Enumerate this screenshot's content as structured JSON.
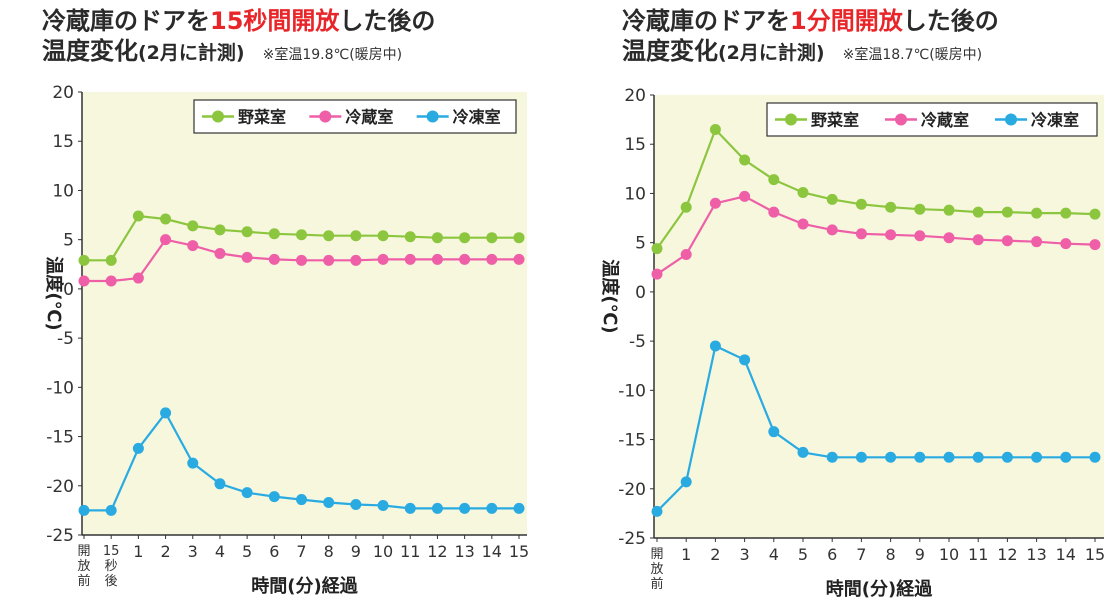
{
  "chart_data": [
    {
      "type": "line",
      "title": {
        "line1_pre": "冷蔵庫のドアを",
        "line1_highlight": "15秒間開放",
        "line1_post": "した後の",
        "line2_main": "温度変化",
        "line2_paren": "(2月に計測)",
        "room_note": "※室温19.8℃(暖房中)"
      },
      "xlabel": "時間(分)経過",
      "ylabel": "温度(℃)",
      "ylim": [
        -25,
        20
      ],
      "yticks": [
        "20",
        "15",
        "10",
        "5",
        "0",
        "-5",
        "-10",
        "-15",
        "-20",
        "-25"
      ],
      "categories": [
        "開放前",
        "15秒後",
        "1",
        "2",
        "3",
        "4",
        "5",
        "6",
        "7",
        "8",
        "9",
        "10",
        "11",
        "12",
        "13",
        "14",
        "15"
      ],
      "legend_position": "top-right",
      "grid": false,
      "series": [
        {
          "name": "野菜室",
          "color": "#8cc63f",
          "values": [
            2.9,
            2.9,
            7.4,
            7.1,
            6.4,
            6.0,
            5.8,
            5.6,
            5.5,
            5.4,
            5.4,
            5.4,
            5.3,
            5.2,
            5.2,
            5.2,
            5.2
          ]
        },
        {
          "name": "冷蔵室",
          "color": "#ee5fa7",
          "values": [
            0.8,
            0.8,
            1.1,
            5.0,
            4.4,
            3.6,
            3.2,
            3.0,
            2.9,
            2.9,
            2.9,
            3.0,
            3.0,
            3.0,
            3.0,
            3.0,
            3.0
          ]
        },
        {
          "name": "冷凍室",
          "color": "#29abe2",
          "values": [
            -22.5,
            -22.5,
            -16.2,
            -12.6,
            -17.7,
            -19.8,
            -20.7,
            -21.1,
            -21.4,
            -21.7,
            -21.9,
            -22.0,
            -22.3,
            -22.3,
            -22.3,
            -22.3,
            -22.3
          ]
        }
      ]
    },
    {
      "type": "line",
      "title": {
        "line1_pre": "冷蔵庫のドアを",
        "line1_highlight": "1分間開放",
        "line1_post": "した後の",
        "line2_main": "温度変化",
        "line2_paren": "(2月に計測)",
        "room_note": "※室温18.7℃(暖房中)"
      },
      "xlabel": "時間(分)経過",
      "ylabel": "温度(℃)",
      "ylim": [
        -25,
        20
      ],
      "yticks": [
        "20",
        "15",
        "10",
        "5",
        "0",
        "-5",
        "-10",
        "-15",
        "-20",
        "-25"
      ],
      "categories": [
        "開放前",
        "1",
        "2",
        "3",
        "4",
        "5",
        "6",
        "7",
        "8",
        "9",
        "10",
        "11",
        "12",
        "13",
        "14",
        "15"
      ],
      "legend_position": "top-right",
      "grid": false,
      "series": [
        {
          "name": "野菜室",
          "color": "#8cc63f",
          "values": [
            4.4,
            8.6,
            16.5,
            13.4,
            11.4,
            10.1,
            9.4,
            8.9,
            8.6,
            8.4,
            8.3,
            8.1,
            8.1,
            8.0,
            8.0,
            7.9
          ]
        },
        {
          "name": "冷蔵室",
          "color": "#ee5fa7",
          "values": [
            1.8,
            3.8,
            9.0,
            9.7,
            8.1,
            6.9,
            6.3,
            5.9,
            5.8,
            5.7,
            5.5,
            5.3,
            5.2,
            5.1,
            4.9,
            4.8
          ]
        },
        {
          "name": "冷凍室",
          "color": "#29abe2",
          "values": [
            -22.3,
            -19.3,
            -5.5,
            -6.9,
            -14.2,
            -16.3,
            -16.8,
            -16.8,
            -16.8,
            -16.8,
            -16.8,
            -16.8,
            -16.8,
            -16.8,
            -16.8,
            -16.8
          ]
        }
      ]
    }
  ]
}
